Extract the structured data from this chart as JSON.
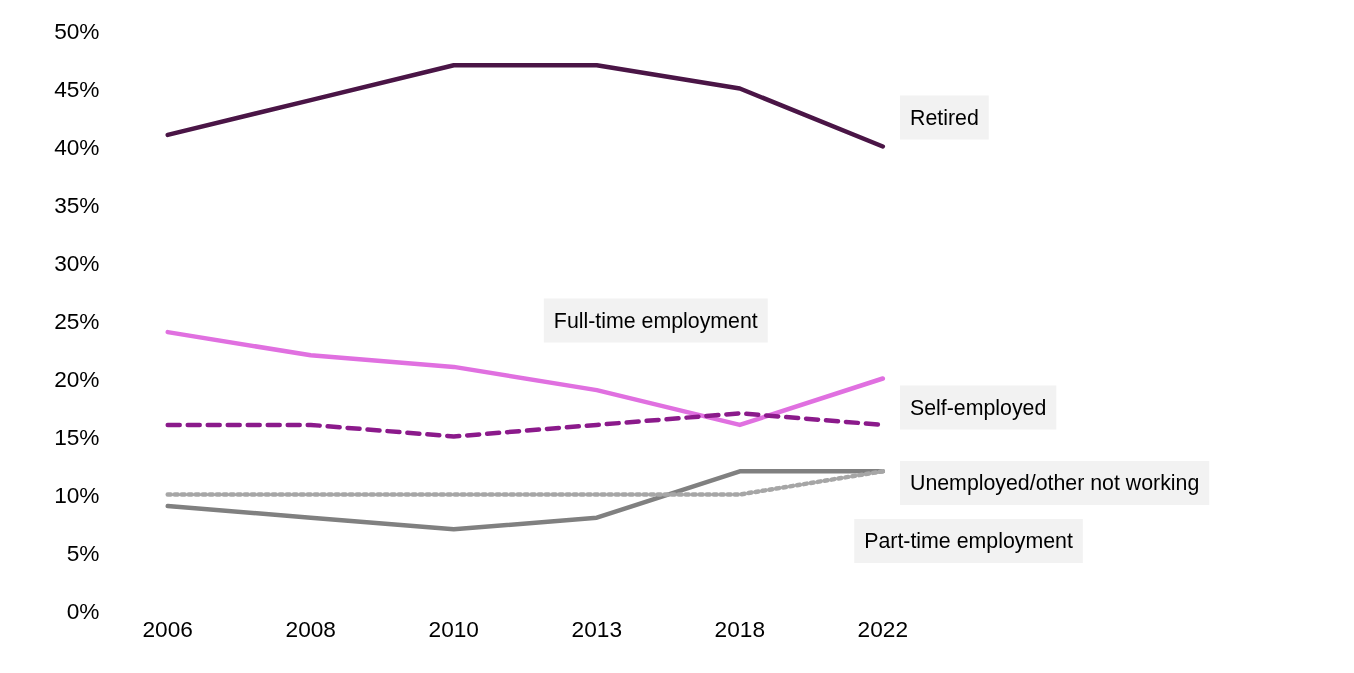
{
  "chart_data": {
    "type": "line",
    "categories": [
      "2006",
      "2008",
      "2010",
      "2013",
      "2018",
      "2022"
    ],
    "ylim": [
      0,
      50
    ],
    "yticks": [
      {
        "value": 0,
        "label": "0%"
      },
      {
        "value": 5,
        "label": "5%"
      },
      {
        "value": 10,
        "label": "10%"
      },
      {
        "value": 15,
        "label": "15%"
      },
      {
        "value": 20,
        "label": "20%"
      },
      {
        "value": 25,
        "label": "25%"
      },
      {
        "value": 30,
        "label": "30%"
      },
      {
        "value": 35,
        "label": "35%"
      },
      {
        "value": 40,
        "label": "40%"
      },
      {
        "value": 45,
        "label": "45%"
      },
      {
        "value": 50,
        "label": "50%"
      }
    ],
    "grid": false,
    "marker": "none",
    "series": [
      {
        "name": "Retired",
        "color": "#4a1546",
        "line_style": "solid",
        "values": [
          41,
          44,
          47,
          47,
          45,
          40
        ]
      },
      {
        "name": "Full-time employment",
        "color": "#e070e0",
        "line_style": "solid",
        "values": [
          24,
          22,
          21,
          19,
          16,
          20
        ]
      },
      {
        "name": "Self-employed",
        "color": "#8b1a8b",
        "line_style": "dashed",
        "values": [
          16,
          16,
          15,
          16,
          17,
          16
        ]
      },
      {
        "name": "Unemployed/other not working",
        "color": "#808080",
        "line_style": "solid",
        "values": [
          9,
          8,
          7,
          8,
          12,
          12
        ]
      },
      {
        "name": "Part-time employment",
        "color": "#a6a6a6",
        "line_style": "dotted",
        "values": [
          10,
          10,
          10,
          10,
          10,
          12
        ]
      }
    ]
  }
}
